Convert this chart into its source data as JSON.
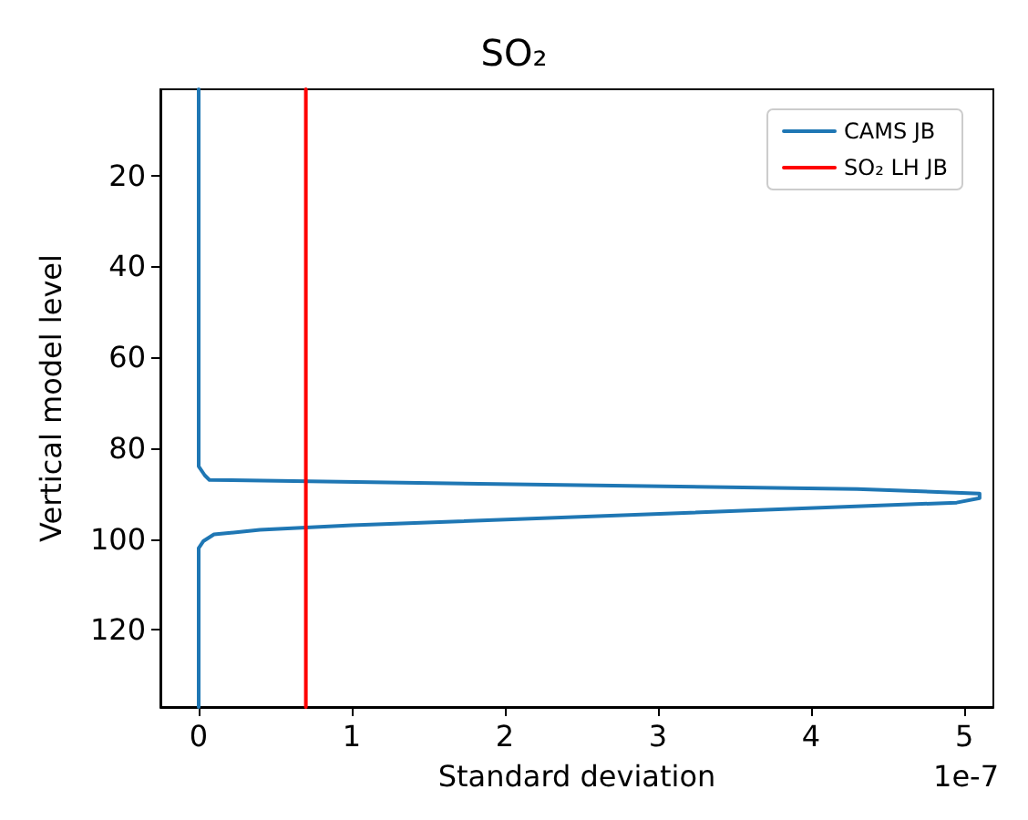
{
  "chart_data": {
    "type": "line",
    "title": "SO₂",
    "xlabel": "Standard deviation",
    "ylabel": "Vertical model level",
    "annotations": [
      "1e-7"
    ],
    "series": [
      {
        "name": "CAMS JB",
        "color": "#1f77b4",
        "x": [
          0,
          0,
          0.04,
          0.07,
          4.3,
          5.1,
          5.1,
          4.95,
          1.0,
          0.4,
          0.1,
          0.03,
          0,
          0
        ],
        "values": [
          1,
          84,
          86,
          87,
          89,
          90,
          91,
          92,
          97,
          98,
          99,
          100.5,
          102,
          137
        ]
      },
      {
        "name": "SO₂ LH JB",
        "color": "#ff0000",
        "x": [
          0.7,
          0.7
        ],
        "values": [
          1,
          137
        ]
      }
    ],
    "xlim": [
      -0.25,
      5.19
    ],
    "xticks": [
      0,
      1,
      2,
      3,
      4,
      5
    ],
    "ylim": [
      137,
      1
    ],
    "yticks": [
      20,
      40,
      60,
      80,
      100,
      120
    ],
    "grid": false,
    "legend": "top right",
    "marker": "none",
    "line_style": "solid"
  }
}
